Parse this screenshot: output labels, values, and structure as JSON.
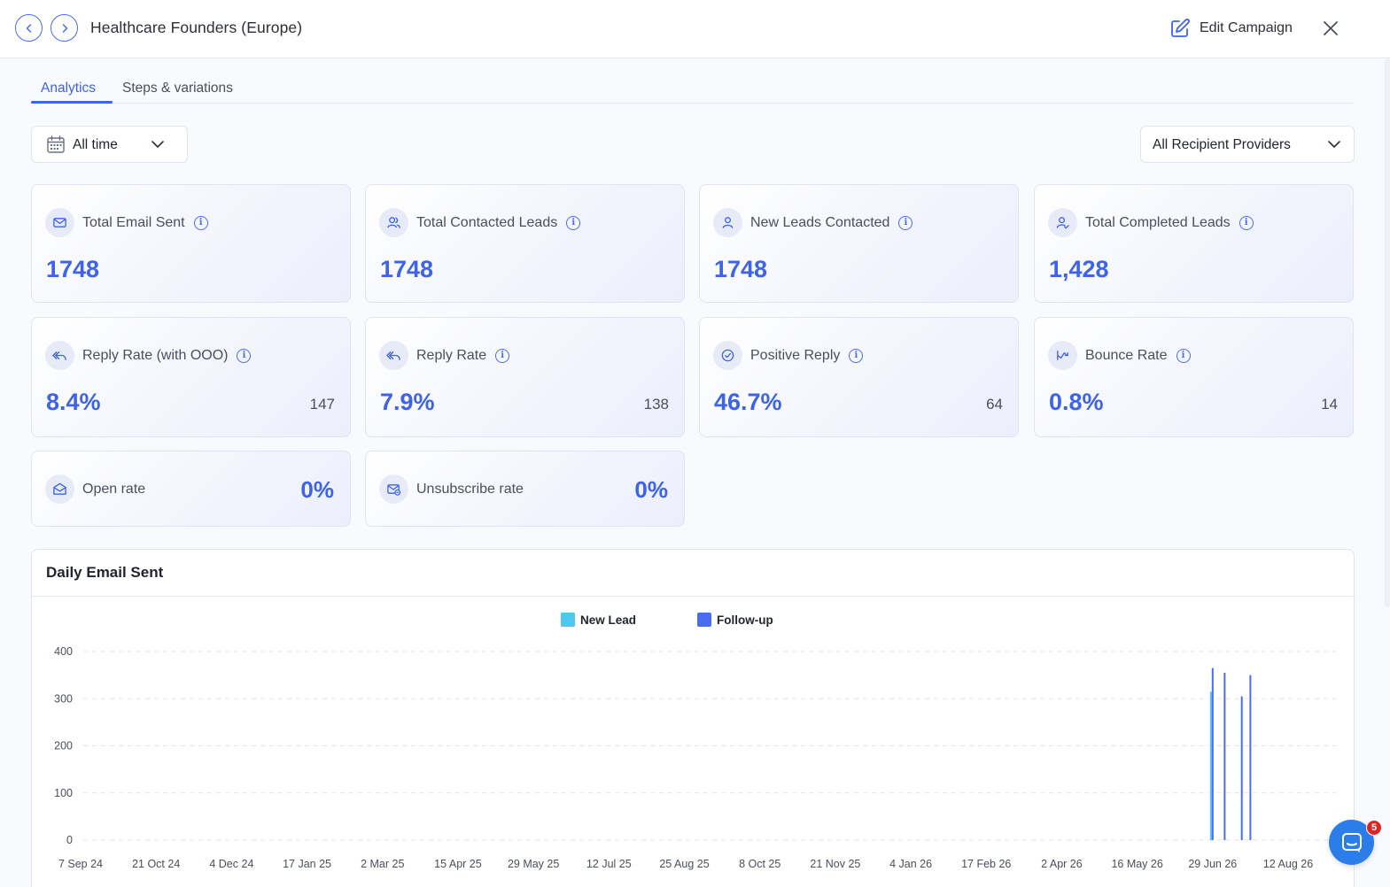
{
  "header": {
    "title": "Healthcare Founders (Europe)",
    "edit_label": "Edit Campaign"
  },
  "tabs": [
    {
      "label": "Analytics",
      "active": true
    },
    {
      "label": "Steps & variations",
      "active": false
    }
  ],
  "filters": {
    "time_range": "All time",
    "providers": "All Recipient Providers"
  },
  "stats": [
    {
      "label": "Total Email Sent",
      "value": "1748",
      "icon": "mail-icon"
    },
    {
      "label": "Total Contacted Leads",
      "value": "1748",
      "icon": "users-icon"
    },
    {
      "label": "New Leads Contacted",
      "value": "1748",
      "icon": "user-icon"
    },
    {
      "label": "Total Completed Leads",
      "value": "1,428",
      "icon": "user-check-icon"
    },
    {
      "label": "Reply Rate (with OOO)",
      "value": "8.4%",
      "count": "147",
      "icon": "reply-all-icon"
    },
    {
      "label": "Reply Rate",
      "value": "7.9%",
      "count": "138",
      "icon": "reply-icon"
    },
    {
      "label": "Positive Reply",
      "value": "46.7%",
      "count": "64",
      "icon": "check-circle-icon"
    },
    {
      "label": "Bounce Rate",
      "value": "0.8%",
      "count": "14",
      "icon": "bounce-icon"
    },
    {
      "label": "Open rate",
      "value": "0%",
      "icon": "mail-open-icon"
    },
    {
      "label": "Unsubscribe rate",
      "value": "0%",
      "icon": "unsubscribe-icon"
    }
  ],
  "chat": {
    "badge": "5"
  },
  "colors": {
    "accent": "#3d63ea",
    "new_lead": "#4cc9f0",
    "follow_up": "#4a6cf0"
  },
  "chart_data": {
    "type": "bar",
    "title": "Daily Email Sent",
    "legend_position": "top-center",
    "grid": true,
    "ylim": [
      0,
      400
    ],
    "yticks": [
      "0",
      "100",
      "200",
      "300",
      "400"
    ],
    "xticks": [
      "7 Sep 24",
      "21 Oct 24",
      "4 Dec 24",
      "17 Jan 25",
      "2 Mar 25",
      "15 Apr 25",
      "29 May 25",
      "12 Jul 25",
      "25 Aug 25",
      "8 Oct 25",
      "21 Nov 25",
      "4 Jan 26",
      "17 Feb 26",
      "2 Apr 26",
      "16 May 26",
      "29 Jun 26",
      "12 Aug 26"
    ],
    "series": [
      {
        "name": "New Lead",
        "color": "#4cc9f0",
        "points": [
          {
            "x": "2026-06-28",
            "y": 315
          }
        ]
      },
      {
        "name": "Follow-up",
        "color": "#4a6cf0",
        "points": [
          {
            "x": "2026-06-29",
            "y": 365
          },
          {
            "x": "2026-07-06",
            "y": 355
          },
          {
            "x": "2026-07-16",
            "y": 305
          },
          {
            "x": "2026-07-21",
            "y": 350
          }
        ]
      }
    ]
  }
}
